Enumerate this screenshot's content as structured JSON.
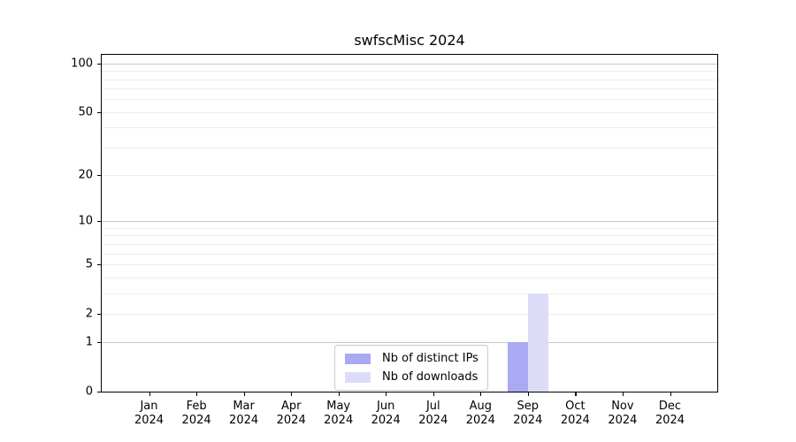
{
  "figure": {
    "background": "#ffffff"
  },
  "chart_data": {
    "type": "bar",
    "title": "swfscMisc 2024",
    "xlabel": "",
    "ylabel": "",
    "yscale": "log1p",
    "ylim": [
      0,
      113
    ],
    "y_tick_values": [
      100,
      50,
      20,
      10,
      5,
      2,
      1,
      0
    ],
    "y_tick_labels": [
      "100",
      "50",
      "20",
      "10",
      "5",
      "2",
      "1",
      "0"
    ],
    "y_major_gridlines": [
      1,
      10,
      100
    ],
    "y_minor_gridlines": [
      2,
      3,
      4,
      5,
      6,
      7,
      8,
      9,
      20,
      30,
      40,
      50,
      60,
      70,
      80,
      90
    ],
    "grid": true,
    "categories": [
      "Jan",
      "Feb",
      "Mar",
      "Apr",
      "May",
      "Jun",
      "Jul",
      "Aug",
      "Sep",
      "Oct",
      "Nov",
      "Dec"
    ],
    "category_year_line": "2024",
    "series": [
      {
        "name": "Nb of distinct IPs",
        "color": "#a9a9f4",
        "values": [
          0,
          0,
          0,
          0,
          0,
          0,
          0,
          0,
          1,
          0,
          0,
          0
        ]
      },
      {
        "name": "Nb of downloads",
        "color": "#dcdcf9",
        "values": [
          0,
          0,
          0,
          0,
          0,
          0,
          0,
          0,
          3,
          0,
          0,
          0
        ]
      }
    ],
    "legend": {
      "position": "lower center",
      "entries": [
        "Nb of distinct IPs",
        "Nb of downloads"
      ]
    },
    "colors": {
      "major_grid": "#c6c6c6",
      "minor_grid": "#ededed",
      "spine": "#000000",
      "tick": "#000000",
      "text": "#000000"
    }
  }
}
